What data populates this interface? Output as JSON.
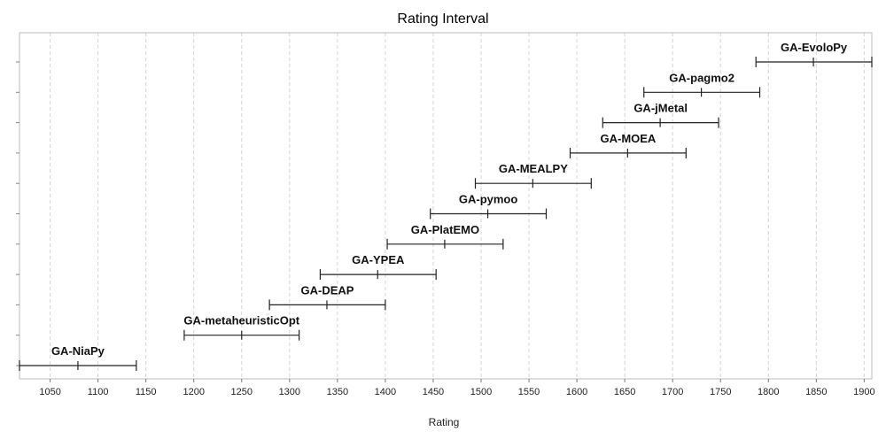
{
  "chart_data": {
    "type": "interval",
    "title": "Rating Interval",
    "xlabel": "Rating",
    "ylabel": "",
    "xlim": [
      1018,
      1908
    ],
    "xticks": [
      1050,
      1100,
      1150,
      1200,
      1250,
      1300,
      1350,
      1400,
      1450,
      1500,
      1550,
      1600,
      1650,
      1700,
      1750,
      1800,
      1850,
      1900
    ],
    "grid": true,
    "colors": {
      "interval": "#222222",
      "grid": "#d4d4d4",
      "frame": "#bdbdbd"
    },
    "items": [
      {
        "label": "GA-NiaPy",
        "low": 1018,
        "mid": 1079,
        "high": 1140
      },
      {
        "label": "GA-metaheuristicOpt",
        "low": 1190,
        "mid": 1250,
        "high": 1310
      },
      {
        "label": "GA-DEAP",
        "low": 1279,
        "mid": 1339,
        "high": 1400
      },
      {
        "label": "GA-YPEA",
        "low": 1332,
        "mid": 1392,
        "high": 1453
      },
      {
        "label": "GA-PlatEMO",
        "low": 1402,
        "mid": 1462,
        "high": 1523
      },
      {
        "label": "GA-pymoo",
        "low": 1447,
        "mid": 1507,
        "high": 1568
      },
      {
        "label": "GA-MEALPY",
        "low": 1494,
        "mid": 1554,
        "high": 1615
      },
      {
        "label": "GA-MOEA",
        "low": 1593,
        "mid": 1653,
        "high": 1714
      },
      {
        "label": "GA-jMetal",
        "low": 1627,
        "mid": 1687,
        "high": 1748
      },
      {
        "label": "GA-pagmo2",
        "low": 1670,
        "mid": 1730,
        "high": 1791
      },
      {
        "label": "GA-EvoloPy",
        "low": 1787,
        "mid": 1847,
        "high": 1908
      }
    ]
  }
}
